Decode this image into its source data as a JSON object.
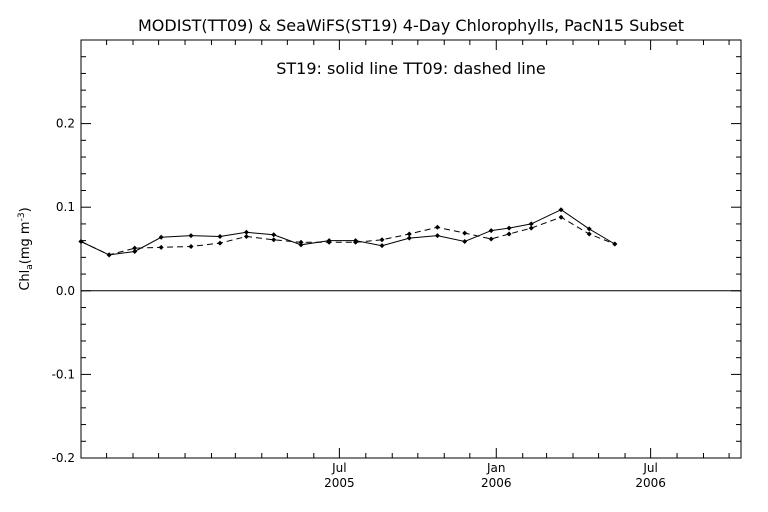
{
  "chart_data": {
    "type": "line",
    "title": "MODIST(TT09) & SeaWiFS(ST19) 4-Day Chlorophylls, PacN15 Subset",
    "annotation": "ST19: solid line    TT09: dashed line",
    "ylabel": "Chl_a (mg m^-3)",
    "ylabel_main": "Chl",
    "ylabel_sub": "a",
    "ylabel_units": "(mg m",
    "ylabel_exp": "-3",
    "ylabel_close": ")",
    "xlabel": "",
    "ylim": [
      -0.2,
      0.3
    ],
    "yticks": [
      {
        "value": 0.2,
        "label": "0.2"
      },
      {
        "value": 0.1,
        "label": "0.1"
      },
      {
        "value": 0.0,
        "label": "0.0"
      },
      {
        "value": -0.1,
        "label": "-0.1"
      },
      {
        "value": -0.2,
        "label": "-0.2"
      }
    ],
    "xlim": [
      "2004-09-01",
      "2006-10-15"
    ],
    "xticks_major": [
      {
        "date": "2005-07-01",
        "month": "Jul",
        "year": "2005"
      },
      {
        "date": "2006-01-01",
        "month": "Jan",
        "year": "2006"
      },
      {
        "date": "2006-07-01",
        "month": "Jul",
        "year": "2006"
      }
    ],
    "xticks_minor": [
      "2004-10-01",
      "2004-11-01",
      "2004-12-01",
      "2005-01-01",
      "2005-02-01",
      "2005-03-01",
      "2005-04-01",
      "2005-05-01",
      "2005-06-01",
      "2005-08-01",
      "2005-09-01",
      "2005-10-01",
      "2005-11-01",
      "2005-12-01",
      "2006-02-01",
      "2006-03-01",
      "2006-04-01",
      "2006-05-01",
      "2006-06-01",
      "2006-08-01",
      "2006-09-01",
      "2006-10-01"
    ],
    "zero_line": 0.0,
    "series": [
      {
        "name": "ST19",
        "style": "solid",
        "color": "#000000",
        "x": [
          "2004-09-01",
          "2004-10-04",
          "2004-11-03",
          "2004-12-04",
          "2005-01-08",
          "2005-02-11",
          "2005-03-14",
          "2005-04-15",
          "2005-05-17",
          "2005-06-19",
          "2005-07-20",
          "2005-08-20",
          "2005-09-21",
          "2005-10-24",
          "2005-11-25",
          "2005-12-26",
          "2006-01-16",
          "2006-02-11",
          "2006-03-18",
          "2006-04-20",
          "2006-05-20",
          "2006-06-21",
          "2006-07-17",
          "2006-08-18",
          "2006-09-25"
        ],
        "y": [
          0.059,
          0.043,
          0.047,
          0.064,
          0.066,
          0.065,
          0.07,
          0.067,
          0.055,
          0.06,
          0.06,
          0.054,
          0.063,
          0.066,
          0.059,
          0.072,
          0.075,
          0.08,
          0.097,
          0.074,
          0.056,
          null,
          null,
          null,
          null
        ]
      },
      {
        "name": "TT09",
        "style": "dashed",
        "color": "#000000",
        "x": [
          "2004-09-01",
          "2004-10-04",
          "2004-11-03",
          "2004-12-04",
          "2005-01-08",
          "2005-02-11",
          "2005-03-14",
          "2005-04-15",
          "2005-05-17",
          "2005-06-19",
          "2005-07-20",
          "2005-08-20",
          "2005-09-21",
          "2005-10-24",
          "2005-11-25",
          "2005-12-26",
          "2006-01-16",
          "2006-02-11",
          "2006-03-18",
          "2006-04-20",
          "2006-05-20"
        ],
        "y": [
          0.059,
          0.043,
          0.051,
          0.052,
          0.053,
          0.057,
          0.065,
          0.061,
          0.058,
          0.058,
          0.058,
          0.061,
          0.068,
          0.076,
          0.069,
          0.062,
          0.068,
          0.075,
          0.088,
          0.068,
          0.056
        ]
      }
    ]
  }
}
